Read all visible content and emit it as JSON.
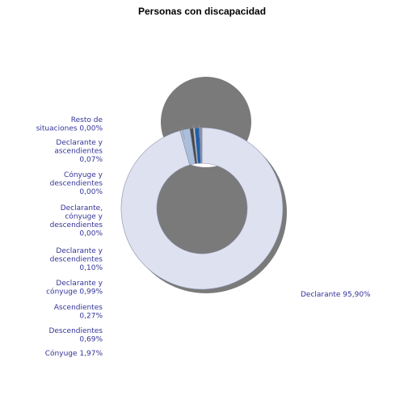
{
  "chart_data": {
    "type": "pie",
    "variant": "donut",
    "title": "Personas con discapacidad",
    "series": [
      {
        "name": "Declarante",
        "value": 95.9,
        "label": "Declarante 95,90%",
        "color": "#dde1f0"
      },
      {
        "name": "Cónyuge",
        "value": 1.97,
        "label": "Cónyuge 1,97%",
        "color": "#a9bfdc"
      },
      {
        "name": "Descendientes",
        "value": 0.69,
        "label": "Descendientes 0,69%",
        "color": "#4a4a4a"
      },
      {
        "name": "Ascendientes",
        "value": 0.27,
        "label": "Ascendientes 0,27%",
        "color": "#e6e6e6"
      },
      {
        "name": "Declarante y cónyuge",
        "value": 0.99,
        "label": "Declarante y cónyuge 0,99%",
        "color": "#1f5fa8"
      },
      {
        "name": "Declarante y descendientes",
        "value": 0.1,
        "label": "Declarante y descendientes 0,10%",
        "color": "#7f7f7f"
      },
      {
        "name": "Declarante, cónyuge y descendientes",
        "value": 0.0,
        "label": "Declarante, cónyuge y descendientes 0,00%",
        "color": "#99b3d6"
      },
      {
        "name": "Cónyuge y descendientes",
        "value": 0.0,
        "label": "Cónyuge y descendientes 0,00%",
        "color": "#b0b0b0"
      },
      {
        "name": "Declarante y ascendientes",
        "value": 0.07,
        "label": "Declarante y ascendientes 0,07%",
        "color": "#c9d4e8"
      },
      {
        "name": "Resto de situaciones",
        "value": 0.0,
        "label": "Resto de situaciones 0,00%",
        "color": "#cccccc"
      }
    ],
    "label_lines": [
      [
        "Resto de",
        "situaciones 0,00%"
      ],
      [
        "Declarante y",
        "ascendientes",
        "0,07%"
      ],
      [
        "Cónyuge y",
        "descendientes",
        "0,00%"
      ],
      [
        "Declarante,",
        "cónyuge y",
        "descendientes",
        "0,00%"
      ],
      [
        "Declarante y",
        "descendientes",
        "0,10%"
      ],
      [
        "Declarante y",
        "cónyuge 0,99%"
      ],
      [
        "Ascendientes",
        "0,27%"
      ],
      [
        "Descendientes",
        "0,69%"
      ],
      [
        "Cónyuge 1,97%"
      ],
      [
        "Declarante 95,90%"
      ]
    ]
  }
}
